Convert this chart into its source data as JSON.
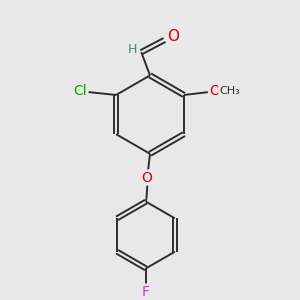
{
  "background_color": "#e8e8e8",
  "bond_color": "#2d2d2d",
  "atom_colors": {
    "O": "#dd0000",
    "Cl": "#00aa00",
    "F": "#bb44bb",
    "C_gray": "#4d7d7d",
    "H": "#4d7d7d"
  },
  "font_size_atoms": 10,
  "fig_size": [
    3.0,
    3.0
  ],
  "dpi": 100
}
